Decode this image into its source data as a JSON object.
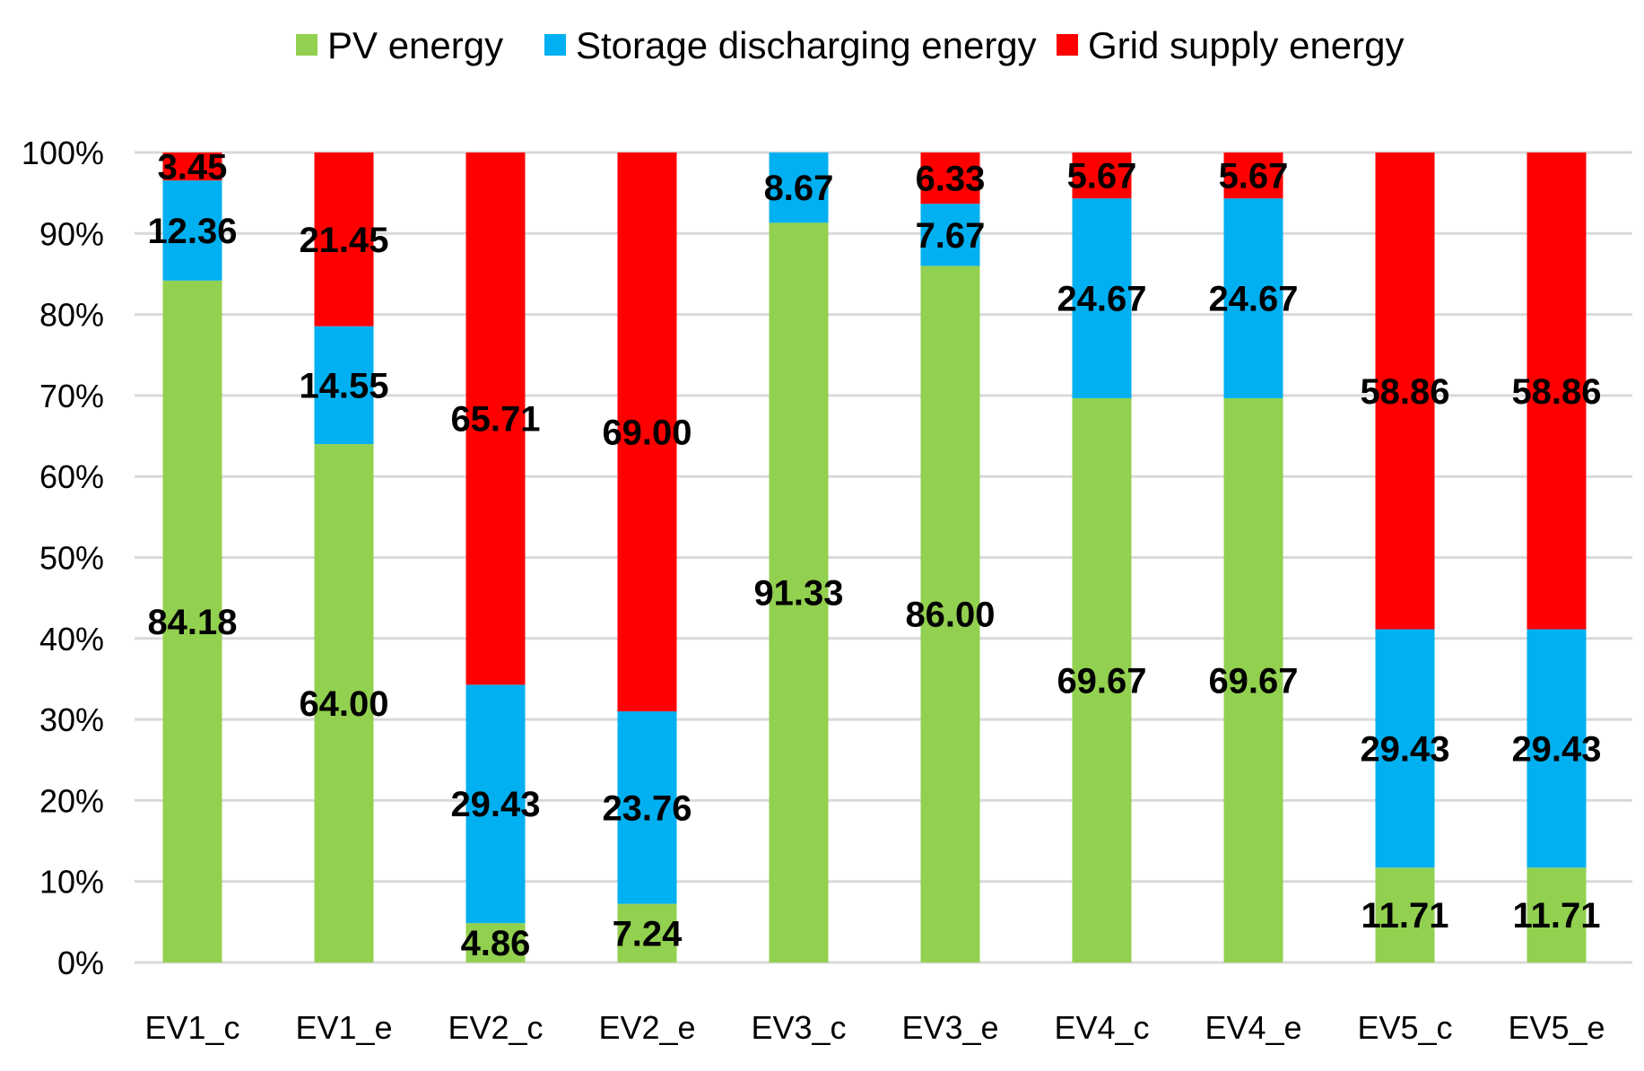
{
  "chart_data": {
    "type": "bar",
    "stacked": "percent",
    "categories": [
      "EV1_c",
      "EV1_e",
      "EV2_c",
      "EV2_e",
      "EV3_c",
      "EV3_e",
      "EV4_c",
      "EV4_e",
      "EV5_c",
      "EV5_e"
    ],
    "series": [
      {
        "name": "PV energy",
        "color": "#92d050",
        "values": [
          84.18,
          64.0,
          4.86,
          7.24,
          91.33,
          86.0,
          69.67,
          69.67,
          11.71,
          11.71
        ]
      },
      {
        "name": "Storage discharging energy",
        "color": "#00b0f0",
        "values": [
          12.36,
          14.55,
          29.43,
          23.76,
          8.67,
          7.67,
          24.67,
          24.67,
          29.43,
          29.43
        ]
      },
      {
        "name": "Grid supply energy",
        "color": "#ff0000",
        "values": [
          3.45,
          21.45,
          65.71,
          69.0,
          null,
          6.33,
          5.67,
          5.67,
          58.86,
          58.86
        ]
      }
    ],
    "data_labels": [
      [
        "84.18",
        "64.00",
        "4.86",
        "7.24",
        "91.33",
        "86.00",
        "69.67",
        "69.67",
        "11.71",
        "11.71"
      ],
      [
        "12.36",
        "14.55",
        "29.43",
        "23.76",
        "8.67",
        "7.67",
        "24.67",
        "24.67",
        "29.43",
        "29.43"
      ],
      [
        "3.45",
        "21.45",
        "65.71",
        "69.00",
        "",
        "6.33",
        "5.67",
        "5.67",
        "58.86",
        "58.86"
      ]
    ],
    "yticks": [
      "0%",
      "10%",
      "20%",
      "30%",
      "40%",
      "50%",
      "60%",
      "70%",
      "80%",
      "90%",
      "100%"
    ],
    "ylim": [
      0,
      100
    ],
    "xlabel": "",
    "ylabel": "",
    "title": "",
    "grid": true,
    "legend_position": "top"
  },
  "colors": {
    "grid": "#d9d9d9"
  }
}
